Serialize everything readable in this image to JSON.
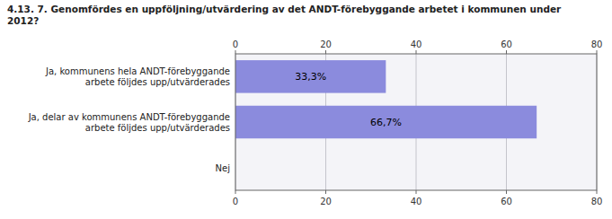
{
  "chart_data": {
    "type": "bar",
    "orientation": "horizontal",
    "title": "4.13. 7. Genomfördes en uppföljning/utvärdering av det ANDT-förebyggande arbetet i kommunen under\n2012?",
    "categories": [
      "Ja, kommunens hela ANDT-förebyggande\narbete följdes upp/utvärderades",
      "Ja, delar av kommunens ANDT-förebyggande\narbete följdes upp/utvärderades",
      "Nej"
    ],
    "values": [
      33.3,
      66.7,
      0
    ],
    "value_labels": [
      "33,3%",
      "66,7%",
      null
    ],
    "data_labels": true,
    "color": "#8b8bdd",
    "xlim": [
      0,
      80
    ],
    "xticks": [
      0,
      20,
      40,
      60,
      80
    ],
    "grid": true
  }
}
